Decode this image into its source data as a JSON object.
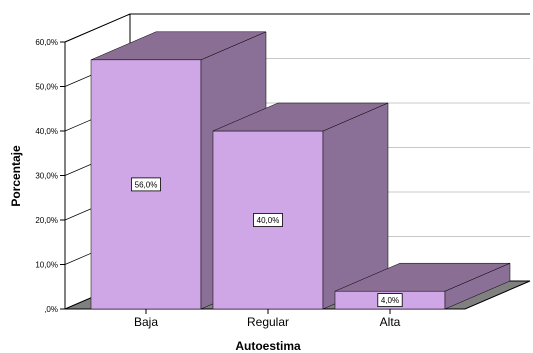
{
  "chart_data": {
    "type": "bar",
    "categories": [
      "Baja",
      "Regular",
      "Alta"
    ],
    "values": [
      56.0,
      40.0,
      4.0
    ],
    "data_labels": [
      "56,0%",
      "40,0%",
      "4,0%"
    ],
    "xlabel": "Autoestima",
    "ylabel": "Porcentaje",
    "ylim": [
      0,
      60
    ],
    "yticks": [
      ",0%",
      "10,0%",
      "20,0%",
      "30,0%",
      "40,0%",
      "50,0%",
      "60,0%"
    ],
    "grid": true,
    "colors": {
      "front": "#cfa6e6",
      "side": "#8a6f97",
      "top": "#8b6e94",
      "outline": "#000000",
      "grid": "#c8c8c8",
      "floor": "#808080"
    }
  }
}
